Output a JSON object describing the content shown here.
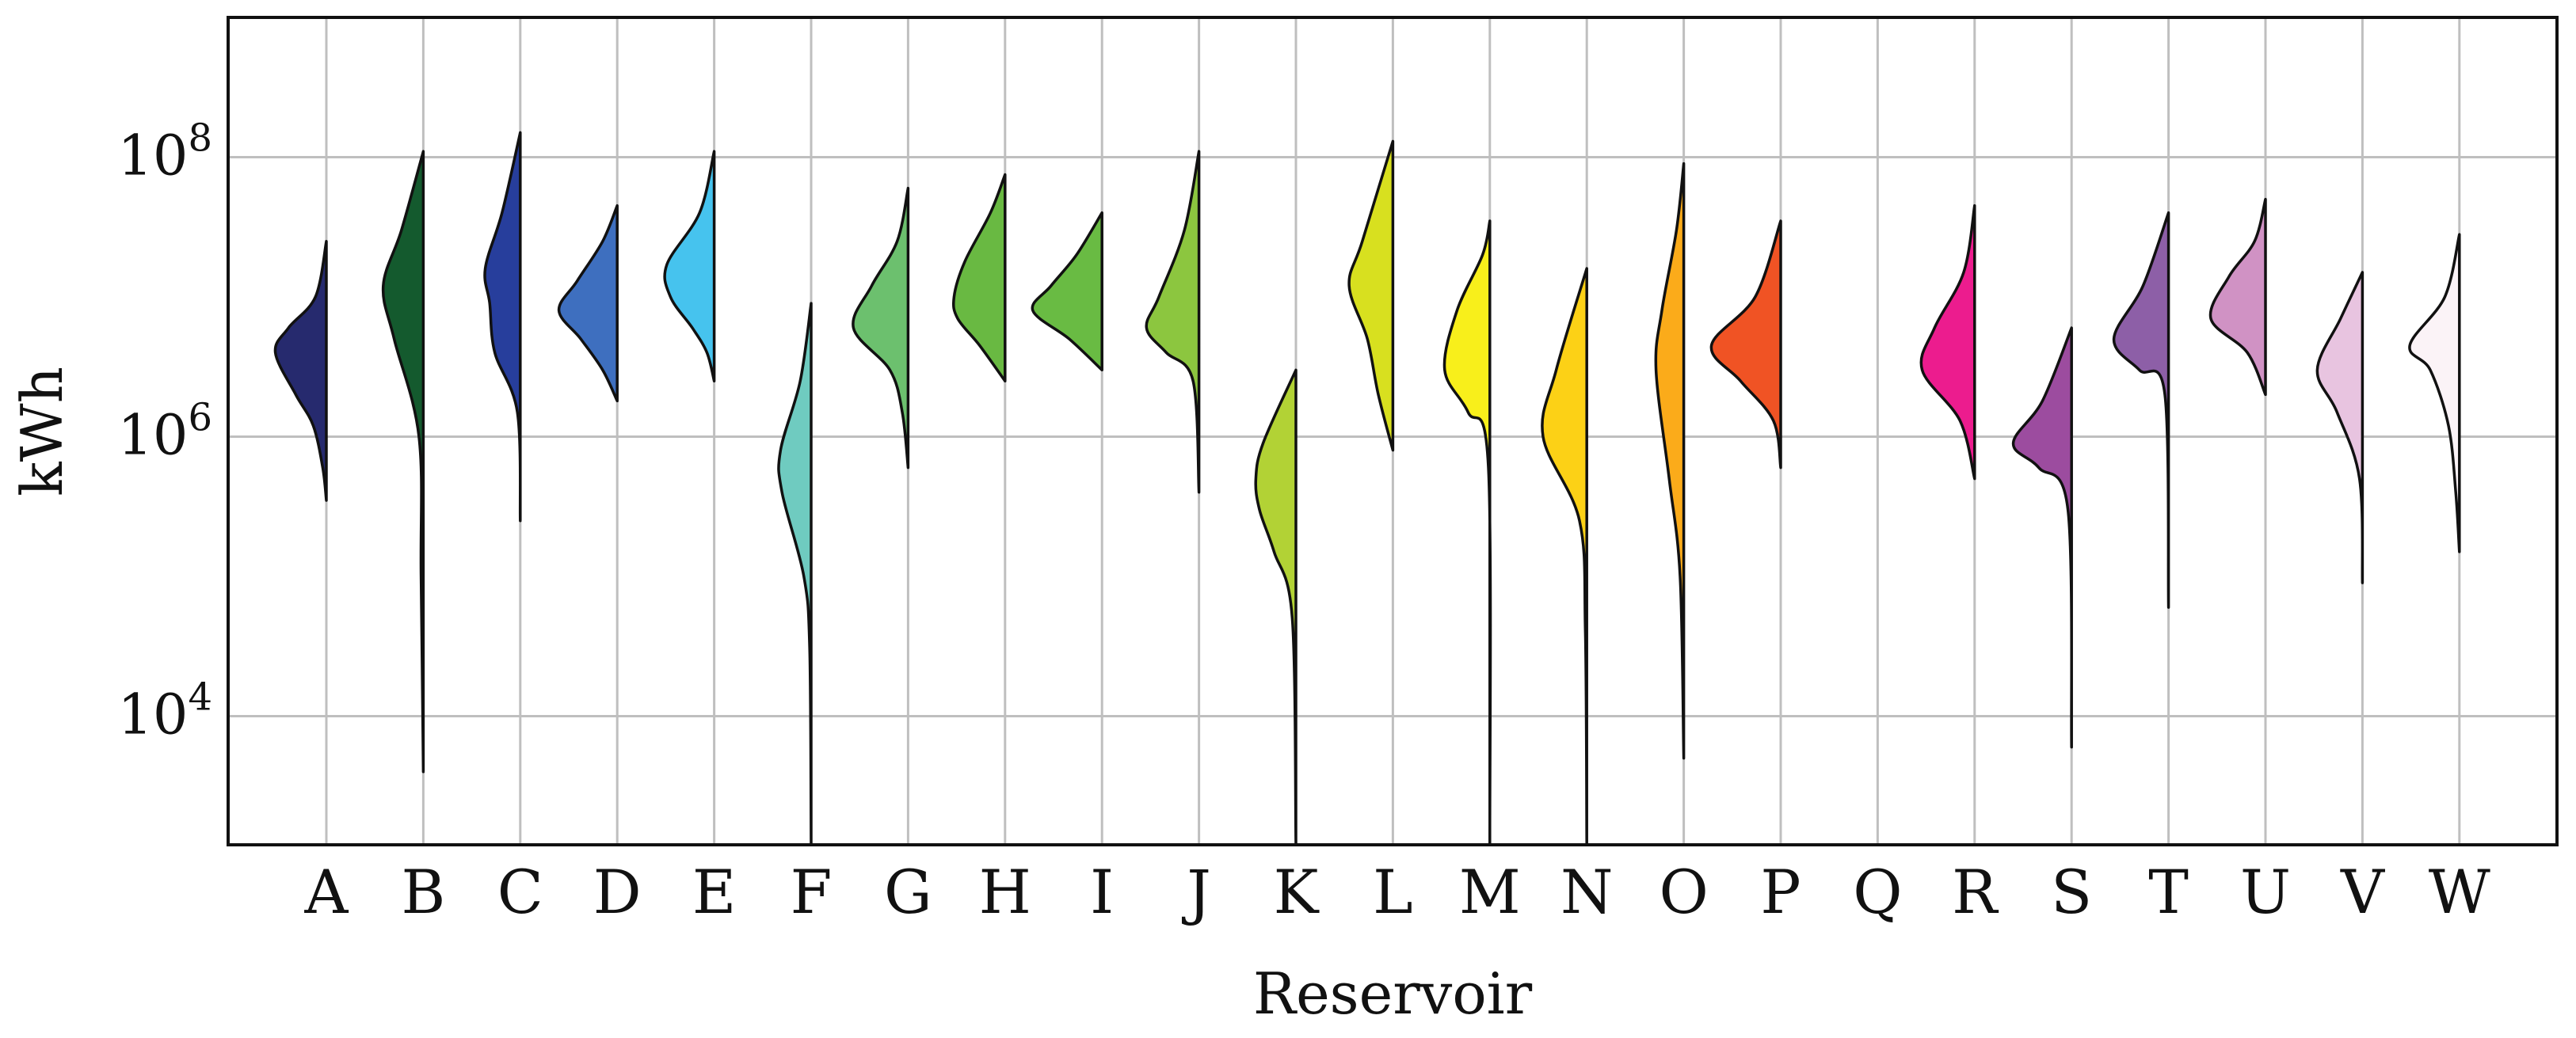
{
  "chart_data": {
    "type": "half-violin",
    "xlabel": "Reservoir",
    "ylabel": "kWh",
    "yscale": "log",
    "ylim": [
      1200,
      1000000000
    ],
    "yticks": [
      {
        "value": 10000,
        "base": "10",
        "exp": "4"
      },
      {
        "value": 1000000,
        "base": "10",
        "exp": "6"
      },
      {
        "value": 100000000,
        "base": "10",
        "exp": "8"
      }
    ],
    "grid": true,
    "categories": [
      "A",
      "B",
      "C",
      "D",
      "E",
      "F",
      "G",
      "H",
      "I",
      "J",
      "K",
      "L",
      "M",
      "N",
      "O",
      "P",
      "Q",
      "R",
      "S",
      "T",
      "U",
      "V",
      "W"
    ],
    "series": [
      {
        "category": "A",
        "color": "#262a6e",
        "min": 350000,
        "max": 25000000,
        "profile": [
          [
            350000,
            0
          ],
          [
            600000,
            0.05
          ],
          [
            1200000,
            0.18
          ],
          [
            2000000,
            0.42
          ],
          [
            4000000,
            0.7
          ],
          [
            6000000,
            0.52
          ],
          [
            10000000,
            0.15
          ],
          [
            25000000,
            0
          ]
        ]
      },
      {
        "category": "B",
        "color": "#145a2e",
        "min": 4000,
        "max": 110000000,
        "profile": [
          [
            4000,
            0
          ],
          [
            100000,
            0.03
          ],
          [
            1000000,
            0.06
          ],
          [
            5000000,
            0.4
          ],
          [
            12000000,
            0.55
          ],
          [
            30000000,
            0.3
          ],
          [
            110000000,
            0
          ]
        ]
      },
      {
        "category": "C",
        "color": "#273e9c",
        "min": 250000,
        "max": 150000000,
        "profile": [
          [
            250000,
            0
          ],
          [
            1500000,
            0.04
          ],
          [
            4000000,
            0.35
          ],
          [
            9000000,
            0.42
          ],
          [
            16000000,
            0.48
          ],
          [
            40000000,
            0.25
          ],
          [
            150000000,
            0
          ]
        ]
      },
      {
        "category": "D",
        "color": "#3e6fbf",
        "min": 1800000,
        "max": 45000000,
        "profile": [
          [
            1800000,
            0
          ],
          [
            3000000,
            0.2
          ],
          [
            5000000,
            0.5
          ],
          [
            8000000,
            0.8
          ],
          [
            13000000,
            0.55
          ],
          [
            25000000,
            0.2
          ],
          [
            45000000,
            0
          ]
        ]
      },
      {
        "category": "E",
        "color": "#46c3ee",
        "min": 2500000,
        "max": 110000000,
        "profile": [
          [
            2500000,
            0
          ],
          [
            4000000,
            0.1
          ],
          [
            6000000,
            0.3
          ],
          [
            10000000,
            0.6
          ],
          [
            17000000,
            0.65
          ],
          [
            40000000,
            0.2
          ],
          [
            110000000,
            0
          ]
        ]
      },
      {
        "category": "F",
        "color": "#6fcbc0",
        "min": 1200,
        "max": 9000000,
        "profile": [
          [
            1200,
            0
          ],
          [
            30000,
            0.02
          ],
          [
            100000,
            0.1
          ],
          [
            400000,
            0.4
          ],
          [
            800000,
            0.42
          ],
          [
            2500000,
            0.15
          ],
          [
            9000000,
            0
          ]
        ]
      },
      {
        "category": "G",
        "color": "#6cc06e",
        "min": 600000,
        "max": 60000000,
        "profile": [
          [
            600000,
            0
          ],
          [
            1500000,
            0.08
          ],
          [
            3000000,
            0.25
          ],
          [
            6000000,
            0.75
          ],
          [
            12000000,
            0.5
          ],
          [
            25000000,
            0.15
          ],
          [
            60000000,
            0
          ]
        ]
      },
      {
        "category": "H",
        "color": "#69b942",
        "min": 2500000,
        "max": 75000000,
        "profile": [
          [
            2500000,
            0
          ],
          [
            4500000,
            0.35
          ],
          [
            7000000,
            0.65
          ],
          [
            10000000,
            0.7
          ],
          [
            18000000,
            0.55
          ],
          [
            40000000,
            0.2
          ],
          [
            75000000,
            0
          ]
        ]
      },
      {
        "category": "I",
        "color": "#69bb43",
        "min": 3000000,
        "max": 40000000,
        "profile": [
          [
            3000000,
            0
          ],
          [
            5000000,
            0.45
          ],
          [
            8000000,
            0.95
          ],
          [
            12000000,
            0.7
          ],
          [
            20000000,
            0.35
          ],
          [
            40000000,
            0
          ]
        ]
      },
      {
        "category": "J",
        "color": "#8cc63f",
        "min": 400000,
        "max": 110000000,
        "profile": [
          [
            400000,
            0
          ],
          [
            2500000,
            0.08
          ],
          [
            4000000,
            0.45
          ],
          [
            6000000,
            0.72
          ],
          [
            10000000,
            0.55
          ],
          [
            30000000,
            0.2
          ],
          [
            110000000,
            0
          ]
        ]
      },
      {
        "category": "K",
        "color": "#b2d235",
        "min": 1200,
        "max": 3000000,
        "profile": [
          [
            1200,
            0
          ],
          [
            50000,
            0.05
          ],
          [
            150000,
            0.3
          ],
          [
            300000,
            0.5
          ],
          [
            500000,
            0.55
          ],
          [
            900000,
            0.45
          ],
          [
            3000000,
            0
          ]
        ]
      },
      {
        "category": "L",
        "color": "#d8e01f",
        "min": 800000,
        "max": 130000000,
        "profile": [
          [
            800000,
            0
          ],
          [
            2000000,
            0.2
          ],
          [
            5000000,
            0.35
          ],
          [
            12000000,
            0.6
          ],
          [
            25000000,
            0.42
          ],
          [
            130000000,
            0
          ]
        ]
      },
      {
        "category": "M",
        "color": "#f8ef1b",
        "min": 1200,
        "max": 35000000,
        "profile": [
          [
            1200,
            0
          ],
          [
            600000,
            0.02
          ],
          [
            1500000,
            0.3
          ],
          [
            3000000,
            0.62
          ],
          [
            8000000,
            0.45
          ],
          [
            20000000,
            0.1
          ],
          [
            35000000,
            0
          ]
        ]
      },
      {
        "category": "N",
        "color": "#fcd116",
        "min": 1200,
        "max": 16000000,
        "profile": [
          [
            1200,
            0
          ],
          [
            40000,
            0.02
          ],
          [
            250000,
            0.1
          ],
          [
            1000000,
            0.6
          ],
          [
            3000000,
            0.42
          ],
          [
            16000000,
            0
          ]
        ]
      },
      {
        "category": "O",
        "color": "#fbab1a",
        "min": 5000,
        "max": 90000000,
        "profile": [
          [
            5000,
            0
          ],
          [
            100000,
            0.05
          ],
          [
            500000,
            0.2
          ],
          [
            3000000,
            0.38
          ],
          [
            8000000,
            0.3
          ],
          [
            30000000,
            0.1
          ],
          [
            90000000,
            0
          ]
        ]
      },
      {
        "category": "P",
        "color": "#f05324",
        "min": 600000,
        "max": 35000000,
        "profile": [
          [
            600000,
            0
          ],
          [
            1300000,
            0.1
          ],
          [
            2500000,
            0.55
          ],
          [
            4500000,
            0.95
          ],
          [
            10000000,
            0.35
          ],
          [
            35000000,
            0
          ]
        ]
      },
      {
        "category": "Q",
        "color": "#ffffff",
        "min": null,
        "max": null,
        "profile": []
      },
      {
        "category": "R",
        "color": "#ec1c8e",
        "min": 500000,
        "max": 45000000,
        "profile": [
          [
            500000,
            0
          ],
          [
            1300000,
            0.2
          ],
          [
            3000000,
            0.72
          ],
          [
            6000000,
            0.55
          ],
          [
            15000000,
            0.15
          ],
          [
            45000000,
            0
          ]
        ]
      },
      {
        "category": "S",
        "color": "#9c4c9f",
        "min": 6000,
        "max": 6000000,
        "profile": [
          [
            6000,
            0
          ],
          [
            300000,
            0.05
          ],
          [
            600000,
            0.45
          ],
          [
            900000,
            0.8
          ],
          [
            1800000,
            0.4
          ],
          [
            6000000,
            0
          ]
        ]
      },
      {
        "category": "T",
        "color": "#8d5fa7",
        "min": 60000,
        "max": 40000000,
        "profile": [
          [
            60000,
            0
          ],
          [
            2000000,
            0.05
          ],
          [
            3000000,
            0.4
          ],
          [
            5000000,
            0.75
          ],
          [
            12000000,
            0.35
          ],
          [
            40000000,
            0
          ]
        ]
      },
      {
        "category": "U",
        "color": "#d092c4",
        "min": 2000000,
        "max": 50000000,
        "profile": [
          [
            2000000,
            0
          ],
          [
            4000000,
            0.25
          ],
          [
            7000000,
            0.75
          ],
          [
            14000000,
            0.5
          ],
          [
            25000000,
            0.15
          ],
          [
            50000000,
            0
          ]
        ]
      },
      {
        "category": "V",
        "color": "#e8c4e0",
        "min": 90000,
        "max": 15000000,
        "profile": [
          [
            90000,
            0
          ],
          [
            500000,
            0.04
          ],
          [
            1500000,
            0.35
          ],
          [
            3000000,
            0.62
          ],
          [
            7000000,
            0.3
          ],
          [
            15000000,
            0
          ]
        ]
      },
      {
        "category": "W",
        "color": "#fbf3f7",
        "min": 150000,
        "max": 28000000,
        "profile": [
          [
            150000,
            0
          ],
          [
            400000,
            0.05
          ],
          [
            1200000,
            0.15
          ],
          [
            3000000,
            0.4
          ],
          [
            4500000,
            0.68
          ],
          [
            10000000,
            0.2
          ],
          [
            28000000,
            0
          ]
        ]
      }
    ]
  }
}
